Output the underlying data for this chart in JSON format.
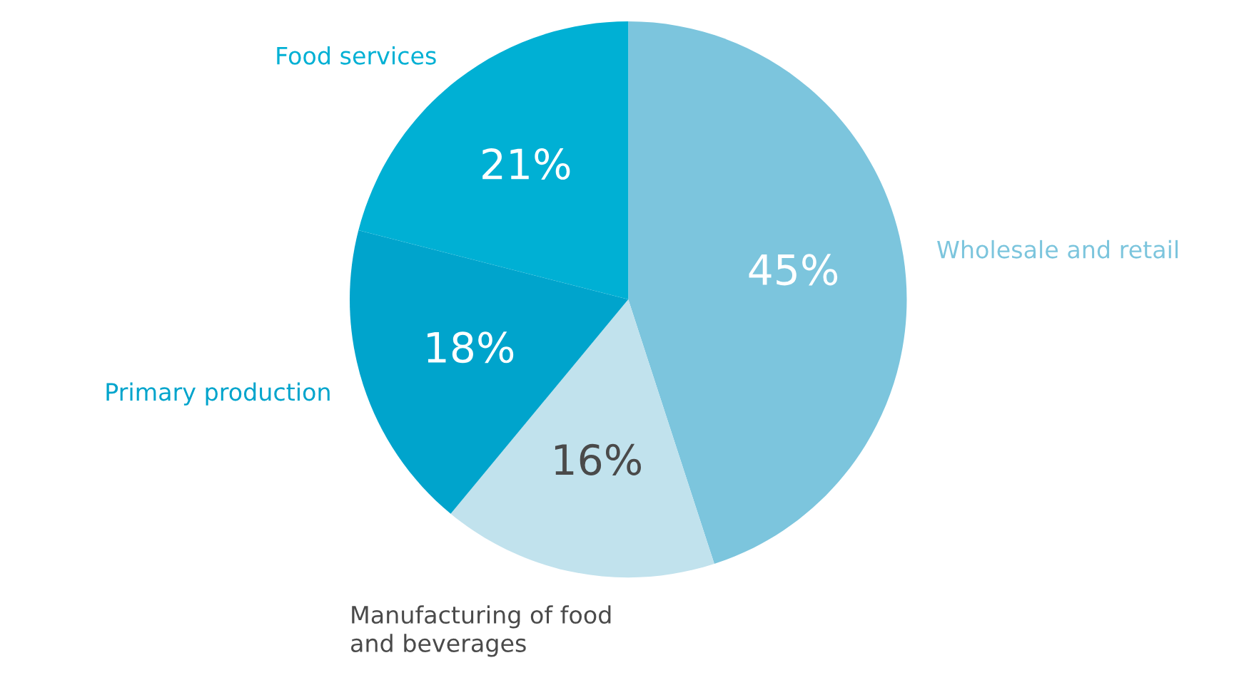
{
  "chart_data": {
    "type": "pie",
    "categories": [
      "Wholesale and retail",
      "Manufacturing of food\nand beverages",
      "Primary production",
      "Food services"
    ],
    "values": [
      45,
      16,
      18,
      21
    ],
    "colors": [
      "#7cc5dd",
      "#c1e2ed",
      "#00a4cc",
      "#00b0d4"
    ],
    "value_labels": [
      "45%",
      "16%",
      "18%",
      "21%"
    ]
  }
}
